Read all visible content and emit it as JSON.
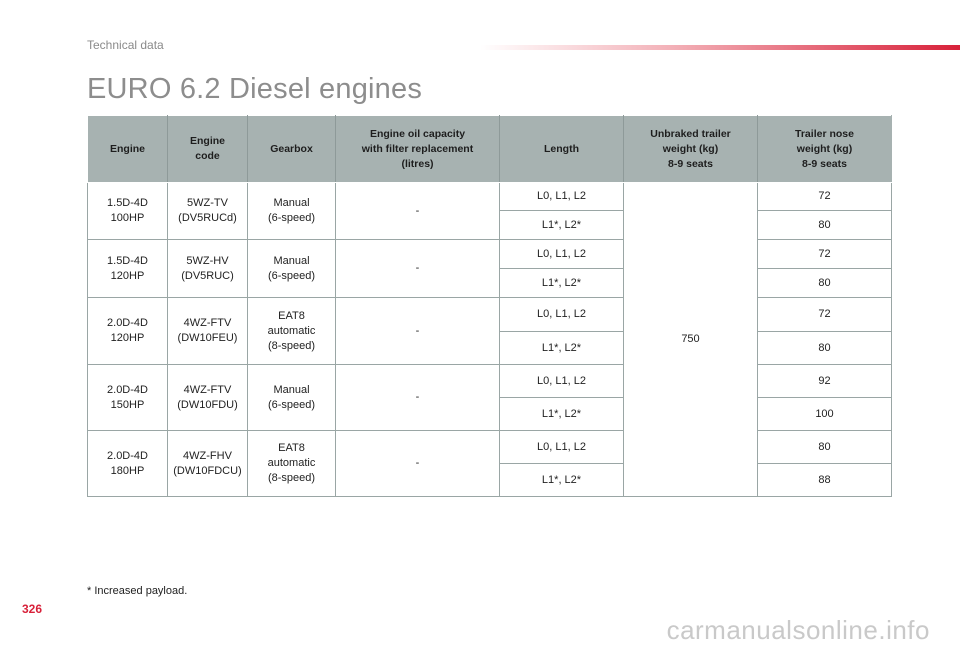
{
  "header": {
    "section": "Technical data",
    "accent_color": "#d8213a"
  },
  "page_title": "EURO 6.2 Diesel engines",
  "table": {
    "columns": [
      "Engine",
      "Engine\ncode",
      "Gearbox",
      "Engine oil capacity\nwith filter replacement\n(litres)",
      "Length",
      "Unbraked trailer\nweight (kg)\n8-9 seats",
      "Trailer nose\nweight (kg)\n8-9 seats"
    ],
    "header_bg": "#a7b2b1",
    "unbraked_weight": "750",
    "engines": [
      {
        "engine": "1.5D-4D\n100HP",
        "code": "5WZ-TV\n(DV5RUCd)",
        "gearbox": "Manual\n(6-speed)",
        "oil": "-",
        "rows": [
          {
            "length": "L0, L1, L2",
            "nose": "72"
          },
          {
            "length": "L1*, L2*",
            "nose": "80"
          }
        ]
      },
      {
        "engine": "1.5D-4D\n120HP",
        "code": "5WZ-HV\n(DV5RUC)",
        "gearbox": "Manual\n(6-speed)",
        "oil": "-",
        "rows": [
          {
            "length": "L0, L1, L2",
            "nose": "72"
          },
          {
            "length": "L1*, L2*",
            "nose": "80"
          }
        ]
      },
      {
        "engine": "2.0D-4D\n120HP",
        "code": "4WZ-FTV\n(DW10FEU)",
        "gearbox": "EAT8\nautomatic\n(8-speed)",
        "oil": "-",
        "rows": [
          {
            "length": "L0, L1, L2",
            "nose": "72"
          },
          {
            "length": "L1*, L2*",
            "nose": "80"
          }
        ]
      },
      {
        "engine": "2.0D-4D\n150HP",
        "code": "4WZ-FTV\n(DW10FDU)",
        "gearbox": "Manual\n(6-speed)",
        "oil": "-",
        "rows": [
          {
            "length": "L0, L1, L2",
            "nose": "92"
          },
          {
            "length": "L1*, L2*",
            "nose": "100"
          }
        ]
      },
      {
        "engine": "2.0D-4D\n180HP",
        "code": "4WZ-FHV\n(DW10FDCU)",
        "gearbox": "EAT8\nautomatic\n(8-speed)",
        "oil": "-",
        "rows": [
          {
            "length": "L0, L1, L2",
            "nose": "80"
          },
          {
            "length": "L1*, L2*",
            "nose": "88"
          }
        ]
      }
    ]
  },
  "footnote": "* Increased payload.",
  "page_number": "326",
  "watermark": "carmanualsonline.info"
}
